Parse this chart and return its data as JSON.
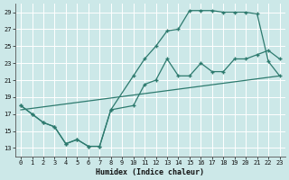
{
  "xlabel": "Humidex (Indice chaleur)",
  "bg_color": "#cce8e8",
  "grid_color": "#ffffff",
  "line_color": "#2d7a6e",
  "xlim": [
    -0.5,
    23.5
  ],
  "ylim": [
    12,
    30
  ],
  "yticks": [
    13,
    15,
    17,
    19,
    21,
    23,
    25,
    27,
    29
  ],
  "xticks": [
    0,
    1,
    2,
    3,
    4,
    5,
    6,
    7,
    8,
    9,
    10,
    11,
    12,
    13,
    14,
    15,
    16,
    17,
    18,
    19,
    20,
    21,
    22,
    23
  ],
  "line1_x": [
    0,
    1,
    2,
    3,
    4,
    5,
    6,
    7,
    8,
    10,
    11,
    12,
    13,
    14,
    15,
    16,
    17,
    18,
    19,
    20,
    21,
    22,
    23
  ],
  "line1_y": [
    18.0,
    17.0,
    16.0,
    15.5,
    13.5,
    14.0,
    13.2,
    13.2,
    17.5,
    21.5,
    23.5,
    25.0,
    26.8,
    27.0,
    29.2,
    29.2,
    29.2,
    29.0,
    29.0,
    29.0,
    28.8,
    23.2,
    21.5
  ],
  "line2_x": [
    0,
    1,
    2,
    3,
    4,
    5,
    6,
    7,
    8,
    10,
    11,
    12,
    13,
    14,
    15,
    16,
    17,
    18,
    19,
    20,
    21,
    22,
    23
  ],
  "line2_y": [
    18.0,
    17.0,
    16.0,
    15.5,
    13.5,
    14.0,
    13.2,
    13.2,
    17.5,
    18.0,
    20.5,
    21.0,
    23.5,
    21.5,
    21.5,
    23.0,
    22.0,
    22.0,
    23.5,
    23.5,
    24.0,
    24.5,
    23.5
  ],
  "line3_x": [
    0,
    23
  ],
  "line3_y": [
    17.5,
    21.5
  ]
}
